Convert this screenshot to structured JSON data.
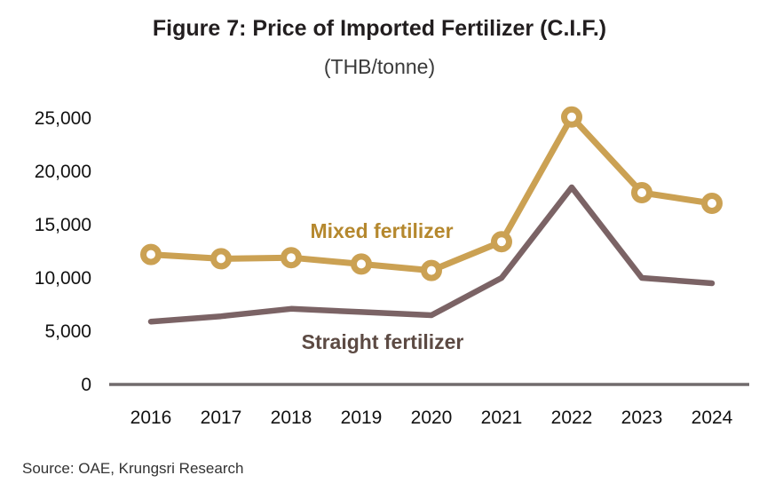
{
  "source": "Source: OAE, Krungsri Research",
  "colors": {
    "background": "#ffffff",
    "axis_line": "#716B6D",
    "title_text": "#221E1F",
    "tick_text": "#111111",
    "subtitle_text": "#3A3A3A",
    "source_text": "#333333"
  },
  "chart_data": {
    "type": "line",
    "title": "Figure 7: Price of Imported Fertilizer (C.I.F.)",
    "subtitle": "(THB/tonne)",
    "xlabel": "",
    "ylabel": "",
    "x": [
      "2016",
      "2017",
      "2018",
      "2019",
      "2020",
      "2021",
      "2022",
      "2023",
      "2024"
    ],
    "series": [
      {
        "name": "Mixed fertilizer",
        "color": "#CBA153",
        "label_color": "#B5882E",
        "marker": "circle",
        "values": [
          12200,
          11800,
          11900,
          11300,
          10700,
          13400,
          25100,
          18000,
          17000
        ]
      },
      {
        "name": "Straight fertilizer",
        "color": "#7B6365",
        "label_color": "#5C4A43",
        "marker": "none",
        "values": [
          5900,
          6400,
          7100,
          6800,
          6500,
          10000,
          18500,
          10000,
          9500
        ]
      }
    ],
    "ylim": [
      0,
      25000
    ],
    "y_ticks": {
      "values": [
        0,
        5000,
        10000,
        15000,
        20000,
        25000
      ],
      "labels": [
        "0",
        "5,000",
        "10,000",
        "15,000",
        "20,000",
        "25,000"
      ]
    },
    "grid": false,
    "legend": "inline-text-labels"
  }
}
